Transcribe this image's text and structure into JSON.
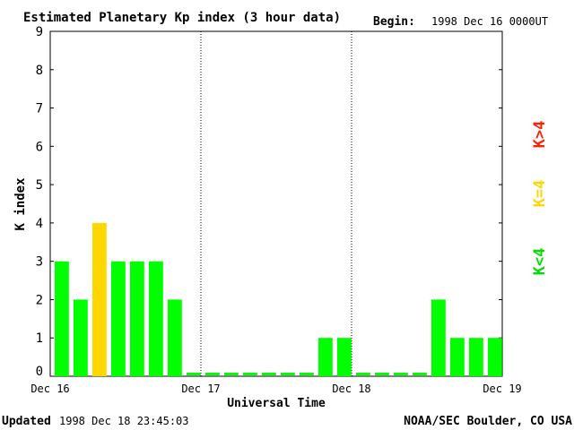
{
  "header": {
    "title": "Estimated Planetary Kp index (3 hour data)",
    "begin_label": "Begin:",
    "begin_value": "1998 Dec 16 0000UT"
  },
  "footer": {
    "updated_label": "Updated",
    "updated_value": "1998 Dec 18 23:45:03",
    "credit": "NOAA/SEC Boulder, CO USA"
  },
  "legend": {
    "low": {
      "label": "K<4",
      "color": "#00ff00"
    },
    "mid": {
      "label": "K=4",
      "color": "#ffd700"
    },
    "high": {
      "label": "K>4",
      "color": "#ff2000"
    }
  },
  "chart_data": {
    "type": "bar",
    "xlabel": "Universal Time",
    "ylabel": "K index",
    "ylim": [
      0,
      9
    ],
    "yticks": [
      "0",
      "1",
      "2",
      "3",
      "4",
      "5",
      "6",
      "7",
      "8",
      "9"
    ],
    "xticks": [
      "Dec 16",
      "Dec 17",
      "Dec 18",
      "Dec 19"
    ],
    "day_dividers": "dotted vertical lines at Dec 17 and Dec 18",
    "bar_interval": "3 hour",
    "values": [
      3,
      2,
      4,
      3,
      3,
      3,
      2,
      0,
      0,
      0,
      0,
      0,
      0,
      0,
      1,
      1,
      0,
      0,
      0,
      0,
      2,
      1,
      1,
      1
    ],
    "color_rule": "green if K<4, yellow if K=4, red if K>4"
  }
}
